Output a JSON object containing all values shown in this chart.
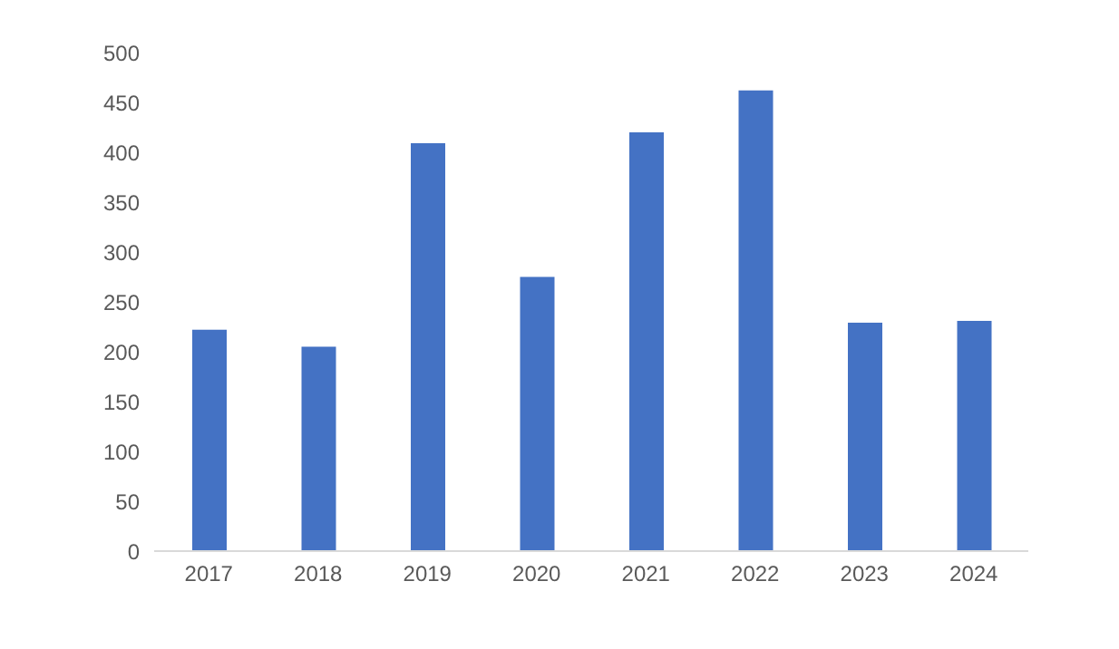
{
  "chart_data": {
    "type": "bar",
    "categories": [
      "2017",
      "2018",
      "2019",
      "2020",
      "2021",
      "2022",
      "2023",
      "2024"
    ],
    "values": [
      222,
      205,
      409,
      275,
      420,
      462,
      229,
      231
    ],
    "color": "#4472c4",
    "ylim": [
      0,
      500
    ],
    "yticks": [
      0,
      50,
      100,
      150,
      200,
      250,
      300,
      350,
      400,
      450,
      500
    ]
  }
}
